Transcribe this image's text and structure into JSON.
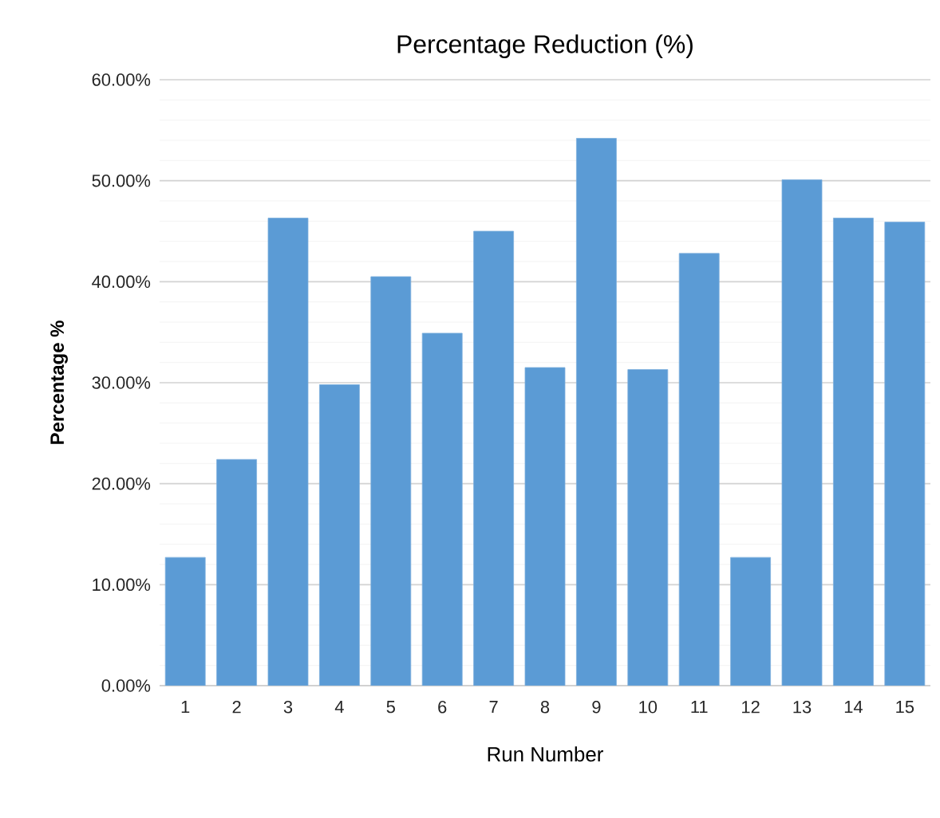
{
  "chart_data": {
    "type": "bar",
    "title": "Percentage Reduction (%)",
    "xlabel": "Run Number",
    "ylabel": "Percentage %",
    "categories": [
      "1",
      "2",
      "3",
      "4",
      "5",
      "6",
      "7",
      "8",
      "9",
      "10",
      "11",
      "12",
      "13",
      "14",
      "15"
    ],
    "values": [
      12.7,
      22.4,
      46.3,
      29.8,
      40.5,
      34.9,
      45.0,
      31.5,
      54.2,
      31.3,
      42.8,
      12.7,
      50.1,
      46.3,
      45.9
    ],
    "color": "#5b9bd5",
    "ylim": [
      0,
      60
    ],
    "yticks": [
      {
        "value": 0,
        "label": "0.00%"
      },
      {
        "value": 10,
        "label": "10.00%"
      },
      {
        "value": 20,
        "label": "20.00%"
      },
      {
        "value": 30,
        "label": "30.00%"
      },
      {
        "value": 40,
        "label": "40.00%"
      },
      {
        "value": 50,
        "label": "50.00%"
      },
      {
        "value": 60,
        "label": "60.00%"
      }
    ],
    "grid": "y"
  }
}
